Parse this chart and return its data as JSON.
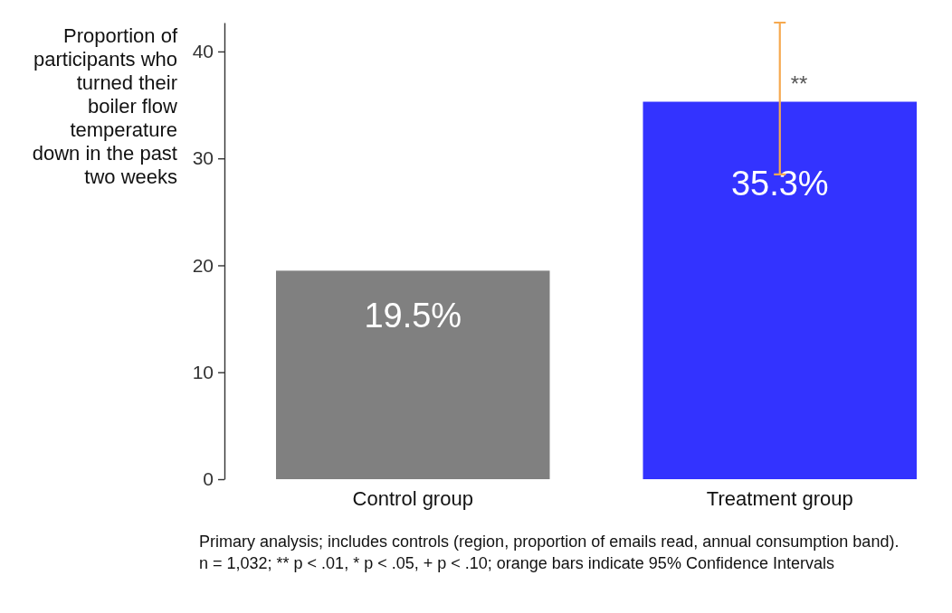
{
  "chart_data": {
    "type": "bar",
    "ylabel": "Proportion of participants who turned their boiler flow temperature down in the past two weeks",
    "categories": [
      "Control group",
      "Treatment group"
    ],
    "values": [
      19.5,
      35.3
    ],
    "colors": [
      "#808080",
      "#3333ff"
    ],
    "value_labels": [
      "19.5%",
      "35.3%"
    ],
    "errors": [
      null,
      [
        28.5,
        42.7
      ]
    ],
    "ylim": [
      0,
      42.7
    ],
    "yticks": [
      0,
      10,
      20,
      30,
      40
    ],
    "annotations": [
      {
        "text": "**",
        "x": "Treatment group",
        "y": 37.4
      },
      "Primary analysis; includes controls (region, proportion of emails read, annual consumption band).",
      "n = 1,032; ** p < .01, * p < .05, + p < .10; orange bars indicate 95% Confidence Intervals"
    ]
  }
}
